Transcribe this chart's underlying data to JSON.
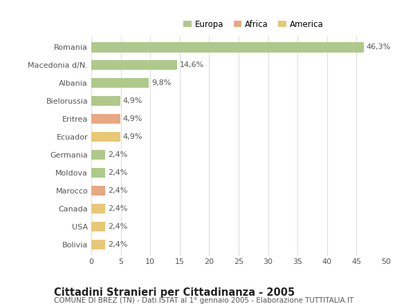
{
  "categories": [
    "Romania",
    "Macedonia d/N.",
    "Albania",
    "Bielorussia",
    "Eritrea",
    "Ecuador",
    "Germania",
    "Moldova",
    "Marocco",
    "Canada",
    "USA",
    "Bolivia"
  ],
  "values": [
    46.3,
    14.6,
    9.8,
    4.9,
    4.9,
    4.9,
    2.4,
    2.4,
    2.4,
    2.4,
    2.4,
    2.4
  ],
  "colors": [
    "#aec98a",
    "#aec98a",
    "#aec98a",
    "#aec98a",
    "#e8a882",
    "#e8c875",
    "#aec98a",
    "#aec98a",
    "#e8a882",
    "#e8c875",
    "#e8c875",
    "#e8c875"
  ],
  "labels": [
    "46,3%",
    "14,6%",
    "9,8%",
    "4,9%",
    "4,9%",
    "4,9%",
    "2,4%",
    "2,4%",
    "2,4%",
    "2,4%",
    "2,4%",
    "2,4%"
  ],
  "legend_labels": [
    "Europa",
    "Africa",
    "America"
  ],
  "legend_colors": [
    "#aec98a",
    "#e8a882",
    "#e8c875"
  ],
  "title": "Cittadini Stranieri per Cittadinanza - 2005",
  "subtitle": "COMUNE DI BREZ (TN) - Dati ISTAT al 1° gennaio 2005 - Elaborazione TUTTITALIA.IT",
  "xlim": [
    0,
    50
  ],
  "xticks": [
    0,
    5,
    10,
    15,
    20,
    25,
    30,
    35,
    40,
    45,
    50
  ],
  "background_color": "#ffffff",
  "grid_color": "#dddddd",
  "bar_height": 0.55,
  "title_fontsize": 10.5,
  "subtitle_fontsize": 7.5,
  "label_fontsize": 8,
  "tick_fontsize": 8,
  "legend_fontsize": 8.5
}
